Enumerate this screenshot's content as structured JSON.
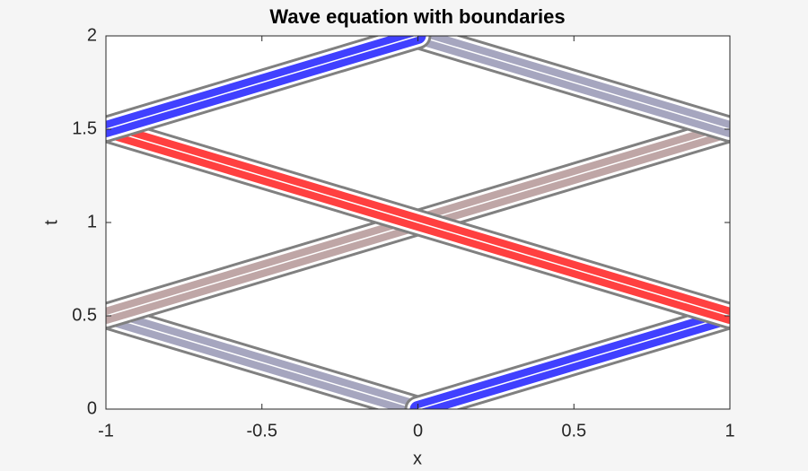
{
  "chart_data": {
    "type": "contour",
    "title": "Wave equation with boundaries",
    "xlabel": "x",
    "ylabel": "t",
    "xlim": [
      -1,
      1
    ],
    "ylim": [
      0,
      2
    ],
    "xticks": [
      -1,
      -0.5,
      0,
      0.5,
      1
    ],
    "yticks": [
      0,
      0.5,
      1,
      1.5,
      2
    ],
    "series": [
      {
        "color": "#8888aa",
        "x": [
          0,
          -1
        ],
        "values": [
          0,
          0.5
        ]
      },
      {
        "color": "#aa8888",
        "x": [
          -1,
          1
        ],
        "values": [
          0.5,
          1.5
        ]
      },
      {
        "color": "#8888aa",
        "x": [
          1,
          0
        ],
        "values": [
          1.5,
          2
        ]
      },
      {
        "color": "#0000ff",
        "x": [
          0,
          1
        ],
        "values": [
          0,
          0.5
        ]
      },
      {
        "color": "#ff0000",
        "x": [
          1,
          -1
        ],
        "values": [
          0.5,
          1.5
        ]
      },
      {
        "color": "#0000ff",
        "x": [
          -1,
          0
        ],
        "values": [
          1.5,
          2
        ]
      }
    ]
  }
}
